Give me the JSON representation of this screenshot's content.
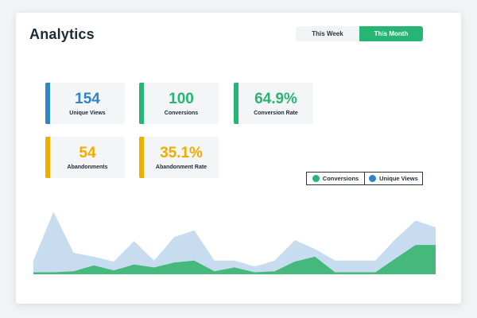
{
  "header": {
    "title": "Analytics"
  },
  "period_toggle": {
    "options": [
      "This Week",
      "This Month"
    ],
    "selected": "This Month"
  },
  "stats": [
    {
      "value": "154",
      "label": "Unique Views",
      "color": "#2e86c6"
    },
    {
      "value": "100",
      "label": "Conversions",
      "color": "#26b574"
    },
    {
      "value": "64.9%",
      "label": "Conversion Rate",
      "color": "#26b574"
    },
    {
      "value": "54",
      "label": "Abandonments",
      "color": "#f0ad00"
    },
    {
      "value": "35.1%",
      "label": "Abandonment Rate",
      "color": "#f0ad00"
    }
  ],
  "legend": [
    {
      "name": "Conversions",
      "color": "#26b574"
    },
    {
      "name": "Unique Views",
      "color": "#2e86c6"
    }
  ],
  "chart_data": {
    "type": "area",
    "x": [
      0,
      1,
      2,
      3,
      4,
      5,
      6,
      7,
      8,
      9,
      10,
      11,
      12,
      13,
      14,
      15,
      16,
      17,
      18,
      19,
      20
    ],
    "series": [
      {
        "name": "Unique Views",
        "color": "#c7dcef",
        "values": [
          14,
          64,
          22,
          18,
          13,
          34,
          14,
          38,
          45,
          14,
          14,
          8,
          14,
          35,
          26,
          14,
          14,
          14,
          36,
          55,
          48
        ]
      },
      {
        "name": "Conversions",
        "color": "#45b97c",
        "values": [
          2,
          2,
          3,
          9,
          4,
          10,
          7,
          12,
          14,
          3,
          7,
          2,
          3,
          13,
          18,
          2,
          2,
          2,
          16,
          30,
          30
        ]
      }
    ],
    "ylim": [
      0,
      70
    ],
    "grid": false
  }
}
